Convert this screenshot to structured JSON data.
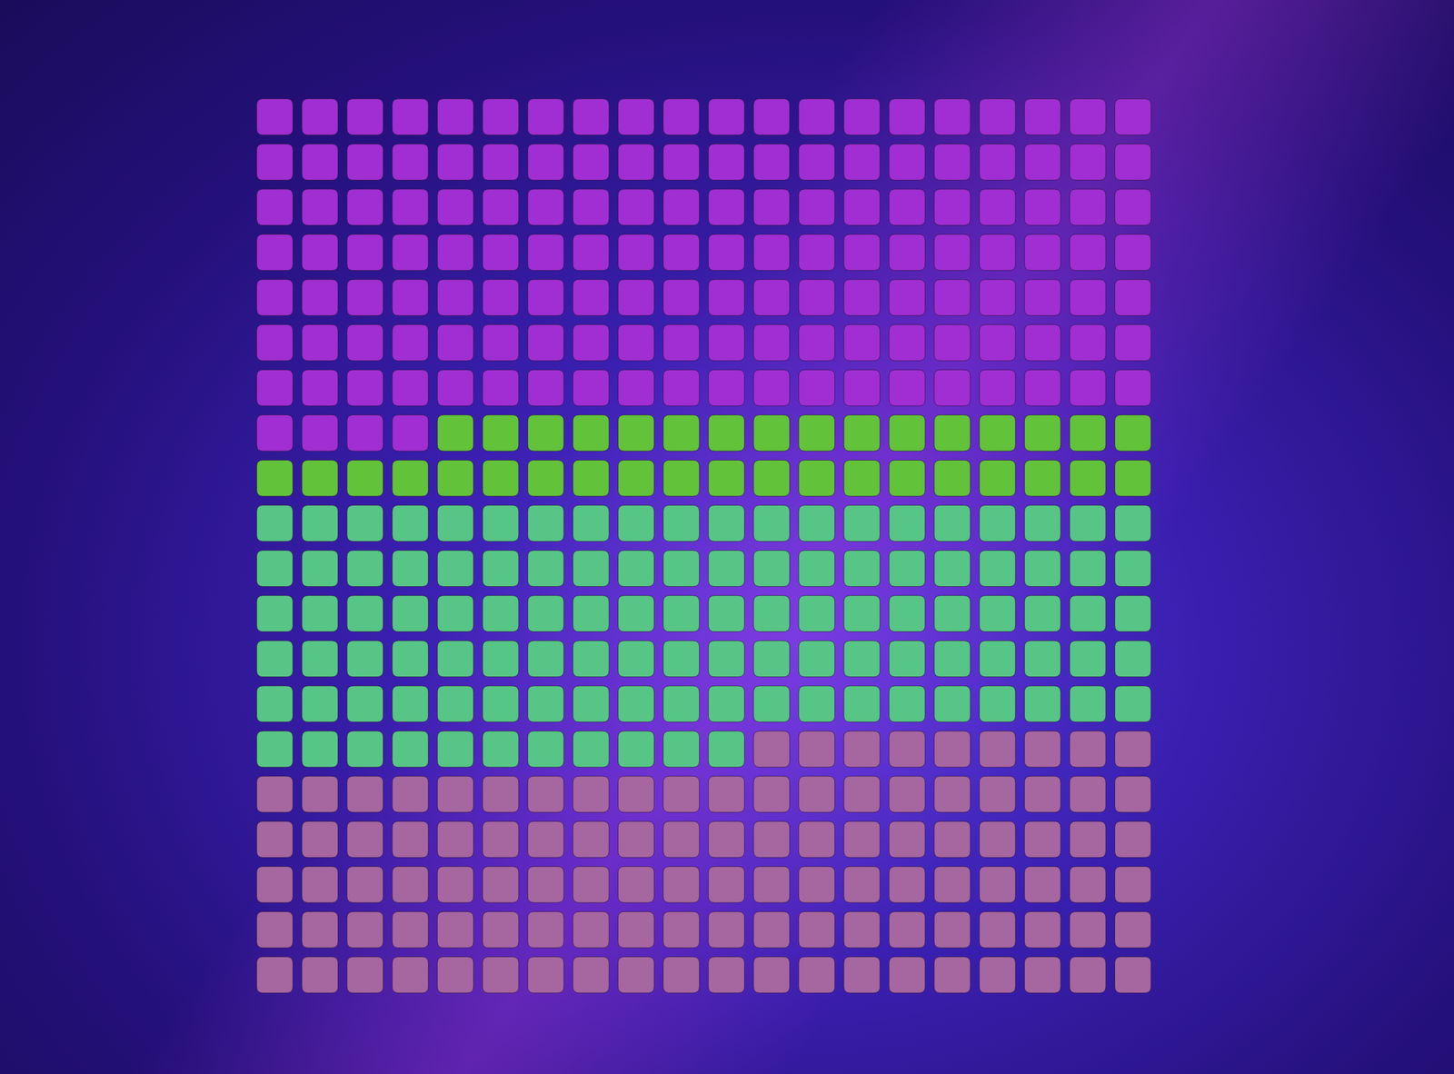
{
  "chart_data": {
    "type": "waffle",
    "values": [
      144,
      36,
      111,
      109
    ],
    "colors": [
      "#a02ed2",
      "#62c23a",
      "#57c585",
      "#a666a0"
    ],
    "tick_labels": false,
    "grid": false
  }
}
